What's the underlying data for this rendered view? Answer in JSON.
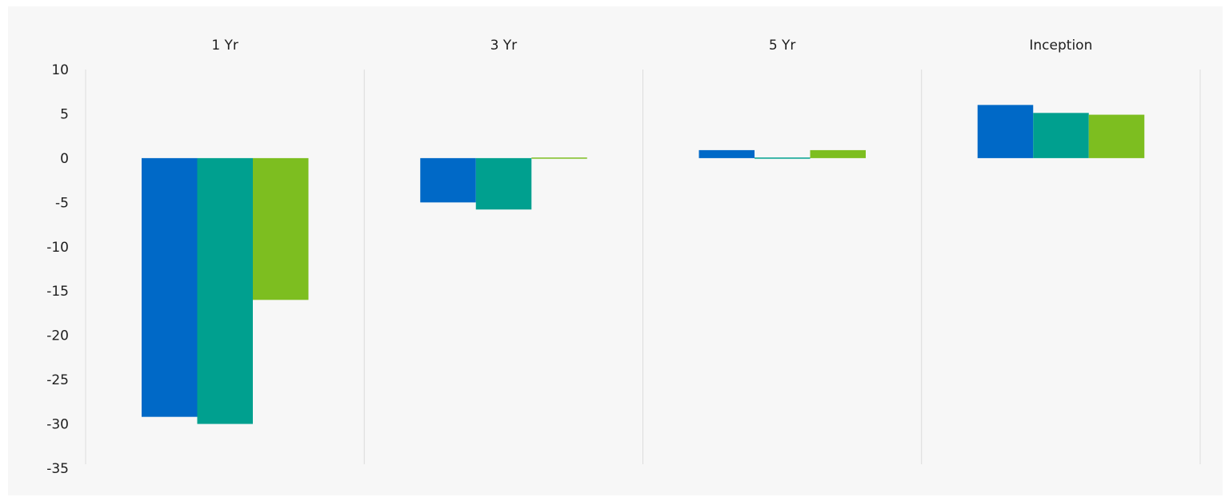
{
  "chart_data": {
    "type": "bar",
    "title": "",
    "xlabel": "",
    "ylabel": "",
    "categories": [
      "1 Yr",
      "3 Yr",
      "5 Yr",
      "Inception"
    ],
    "category_axis_position": "top",
    "ylim": [
      -35,
      10
    ],
    "yticks": [
      10,
      5,
      0,
      -5,
      -10,
      -15,
      -20,
      -25,
      -30,
      -35
    ],
    "grid": "vertical separators between categories",
    "legend": "none",
    "series": [
      {
        "color": "#0069c7",
        "values": [
          -29.2,
          -5.0,
          0.9,
          6.0
        ]
      },
      {
        "color": "#00a08f",
        "values": [
          -30.0,
          -5.8,
          -0.1,
          5.1
        ]
      },
      {
        "color": "#7dbe20",
        "values": [
          -16.0,
          0.1,
          0.9,
          4.9
        ]
      }
    ]
  }
}
